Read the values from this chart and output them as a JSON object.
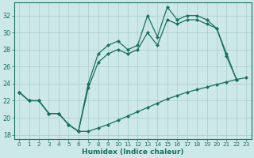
{
  "xlabel": "Humidex (Indice chaleur)",
  "bg_color": "#cce8e8",
  "grid_color": "#aacccc",
  "line_color": "#1a7060",
  "xlim": [
    -0.5,
    23.5
  ],
  "ylim": [
    17.5,
    33.5
  ],
  "yticks": [
    18,
    20,
    22,
    24,
    26,
    28,
    30,
    32
  ],
  "xticks": [
    0,
    1,
    2,
    3,
    4,
    5,
    6,
    7,
    8,
    9,
    10,
    11,
    12,
    13,
    14,
    15,
    16,
    17,
    18,
    19,
    20,
    21,
    22,
    23
  ],
  "line_low_x": [
    0,
    1,
    2,
    3,
    4,
    5,
    6,
    7,
    8,
    9,
    10,
    11,
    12,
    13,
    14,
    15,
    16,
    17,
    18,
    19,
    20,
    21,
    22,
    23
  ],
  "line_low_y": [
    23.0,
    22.0,
    22.0,
    20.5,
    20.5,
    19.2,
    18.4,
    18.4,
    18.8,
    19.2,
    19.7,
    20.2,
    20.7,
    21.2,
    21.7,
    22.2,
    22.6,
    23.0,
    23.3,
    23.6,
    23.9,
    24.2,
    24.5,
    24.7
  ],
  "line_mid_x": [
    0,
    1,
    2,
    3,
    4,
    5,
    6,
    7,
    8,
    9,
    10,
    11,
    12,
    13,
    14,
    15,
    16,
    17,
    18,
    19,
    20,
    21,
    22
  ],
  "line_mid_y": [
    23.0,
    22.0,
    22.0,
    20.5,
    20.5,
    19.2,
    18.4,
    23.5,
    26.5,
    27.5,
    28.0,
    27.5,
    28.0,
    30.0,
    28.5,
    31.5,
    31.0,
    31.5,
    31.5,
    31.0,
    30.5,
    27.2,
    24.5
  ],
  "line_top_x": [
    0,
    1,
    2,
    3,
    4,
    5,
    6,
    7,
    8,
    9,
    10,
    11,
    12,
    13,
    14,
    15,
    16,
    17,
    18,
    19,
    20,
    21,
    22
  ],
  "line_top_y": [
    23.0,
    22.0,
    22.0,
    20.5,
    20.5,
    19.2,
    18.4,
    24.0,
    27.5,
    28.5,
    29.0,
    28.0,
    28.5,
    32.0,
    29.5,
    33.0,
    31.5,
    32.0,
    32.0,
    31.5,
    30.5,
    27.5,
    24.5
  ]
}
